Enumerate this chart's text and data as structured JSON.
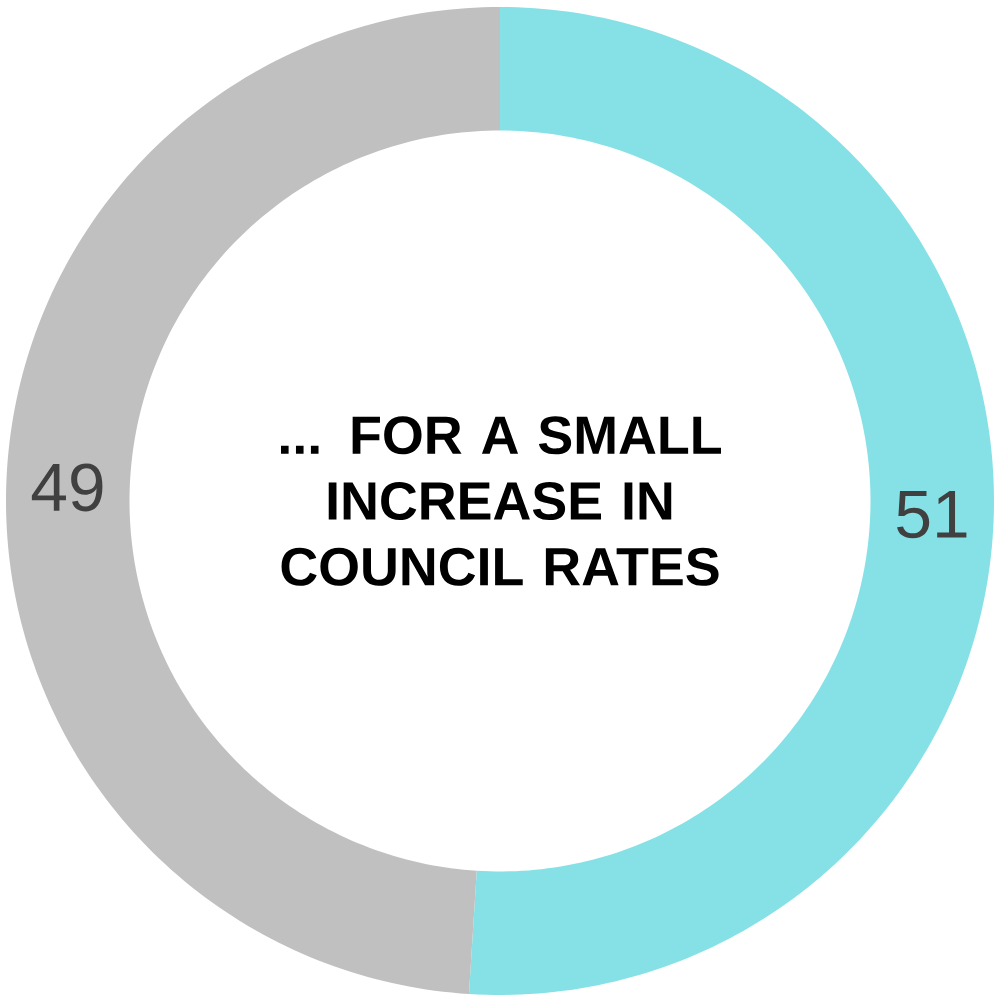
{
  "chart_data": {
    "type": "donut",
    "title": "... FOR A SMALL INCREASE IN COUNCIL RATES",
    "categories": [
      null,
      null
    ],
    "values": [
      51,
      49
    ],
    "colors": [
      "#86e1e6",
      "#c0c0c0"
    ],
    "data_labels": true
  }
}
